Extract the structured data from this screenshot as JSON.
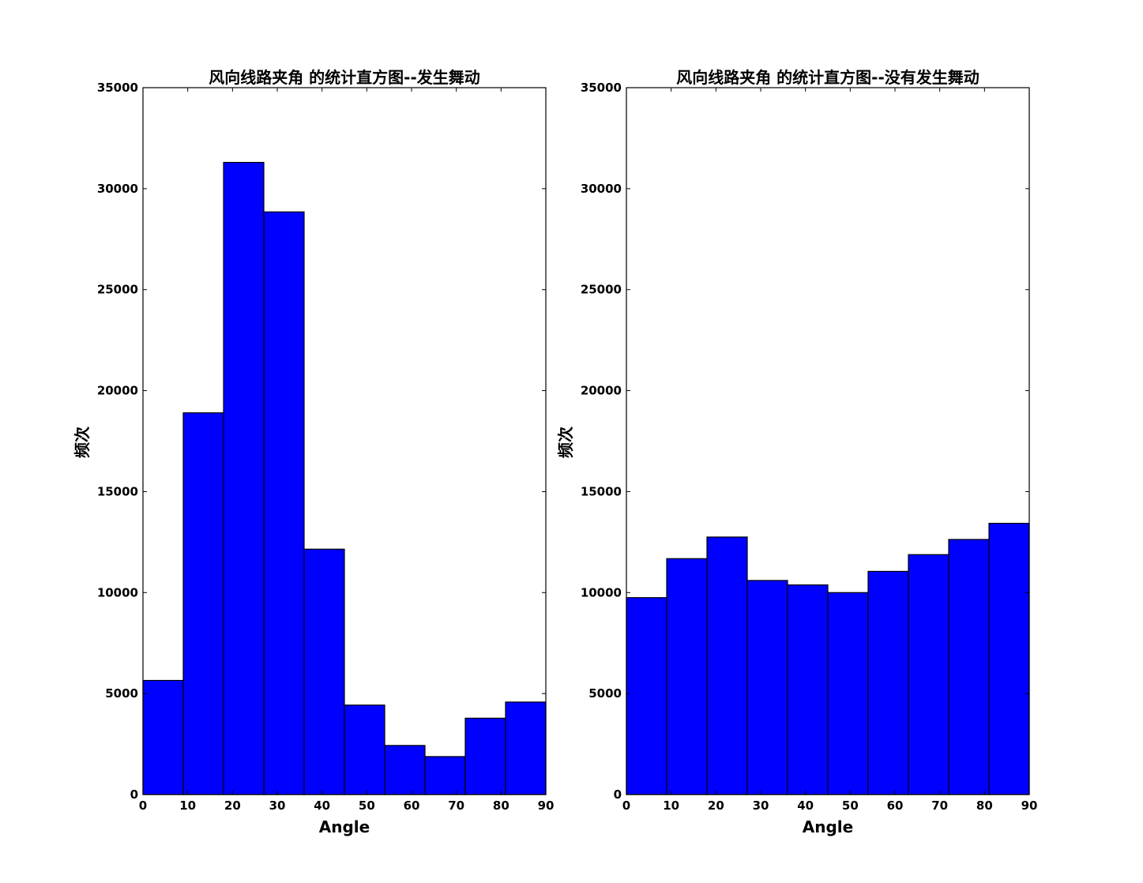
{
  "chart_data": [
    {
      "type": "bar",
      "title": "风向线路夹角 的统计直方图--发生舞动",
      "xlabel": "Angle",
      "ylabel": "频次",
      "bin_edges": [
        0,
        9,
        18,
        27,
        36,
        45,
        54,
        63,
        72,
        81,
        90
      ],
      "values": [
        5650,
        18900,
        31300,
        28850,
        12150,
        4430,
        2430,
        1880,
        3780,
        4580
      ],
      "xlim": [
        0,
        90
      ],
      "ylim": [
        0,
        35000
      ],
      "xticks": [
        0,
        10,
        20,
        30,
        40,
        50,
        60,
        70,
        80,
        90
      ],
      "yticks": [
        0,
        5000,
        10000,
        15000,
        20000,
        25000,
        30000,
        35000
      ],
      "bar_color": "#0000ff",
      "edge_color": "#000000",
      "grid": false
    },
    {
      "type": "bar",
      "title": "风向线路夹角 的统计直方图--没有发生舞动",
      "xlabel": "Angle",
      "ylabel": "频次",
      "bin_edges": [
        0,
        9,
        18,
        27,
        36,
        45,
        54,
        63,
        72,
        81,
        90
      ],
      "values": [
        9750,
        11680,
        12750,
        10600,
        10380,
        10000,
        11050,
        11880,
        12630,
        13430
      ],
      "xlim": [
        0,
        90
      ],
      "ylim": [
        0,
        35000
      ],
      "xticks": [
        0,
        10,
        20,
        30,
        40,
        50,
        60,
        70,
        80,
        90
      ],
      "yticks": [
        0,
        5000,
        10000,
        15000,
        20000,
        25000,
        30000,
        35000
      ],
      "bar_color": "#0000ff",
      "edge_color": "#000000",
      "grid": false
    }
  ]
}
